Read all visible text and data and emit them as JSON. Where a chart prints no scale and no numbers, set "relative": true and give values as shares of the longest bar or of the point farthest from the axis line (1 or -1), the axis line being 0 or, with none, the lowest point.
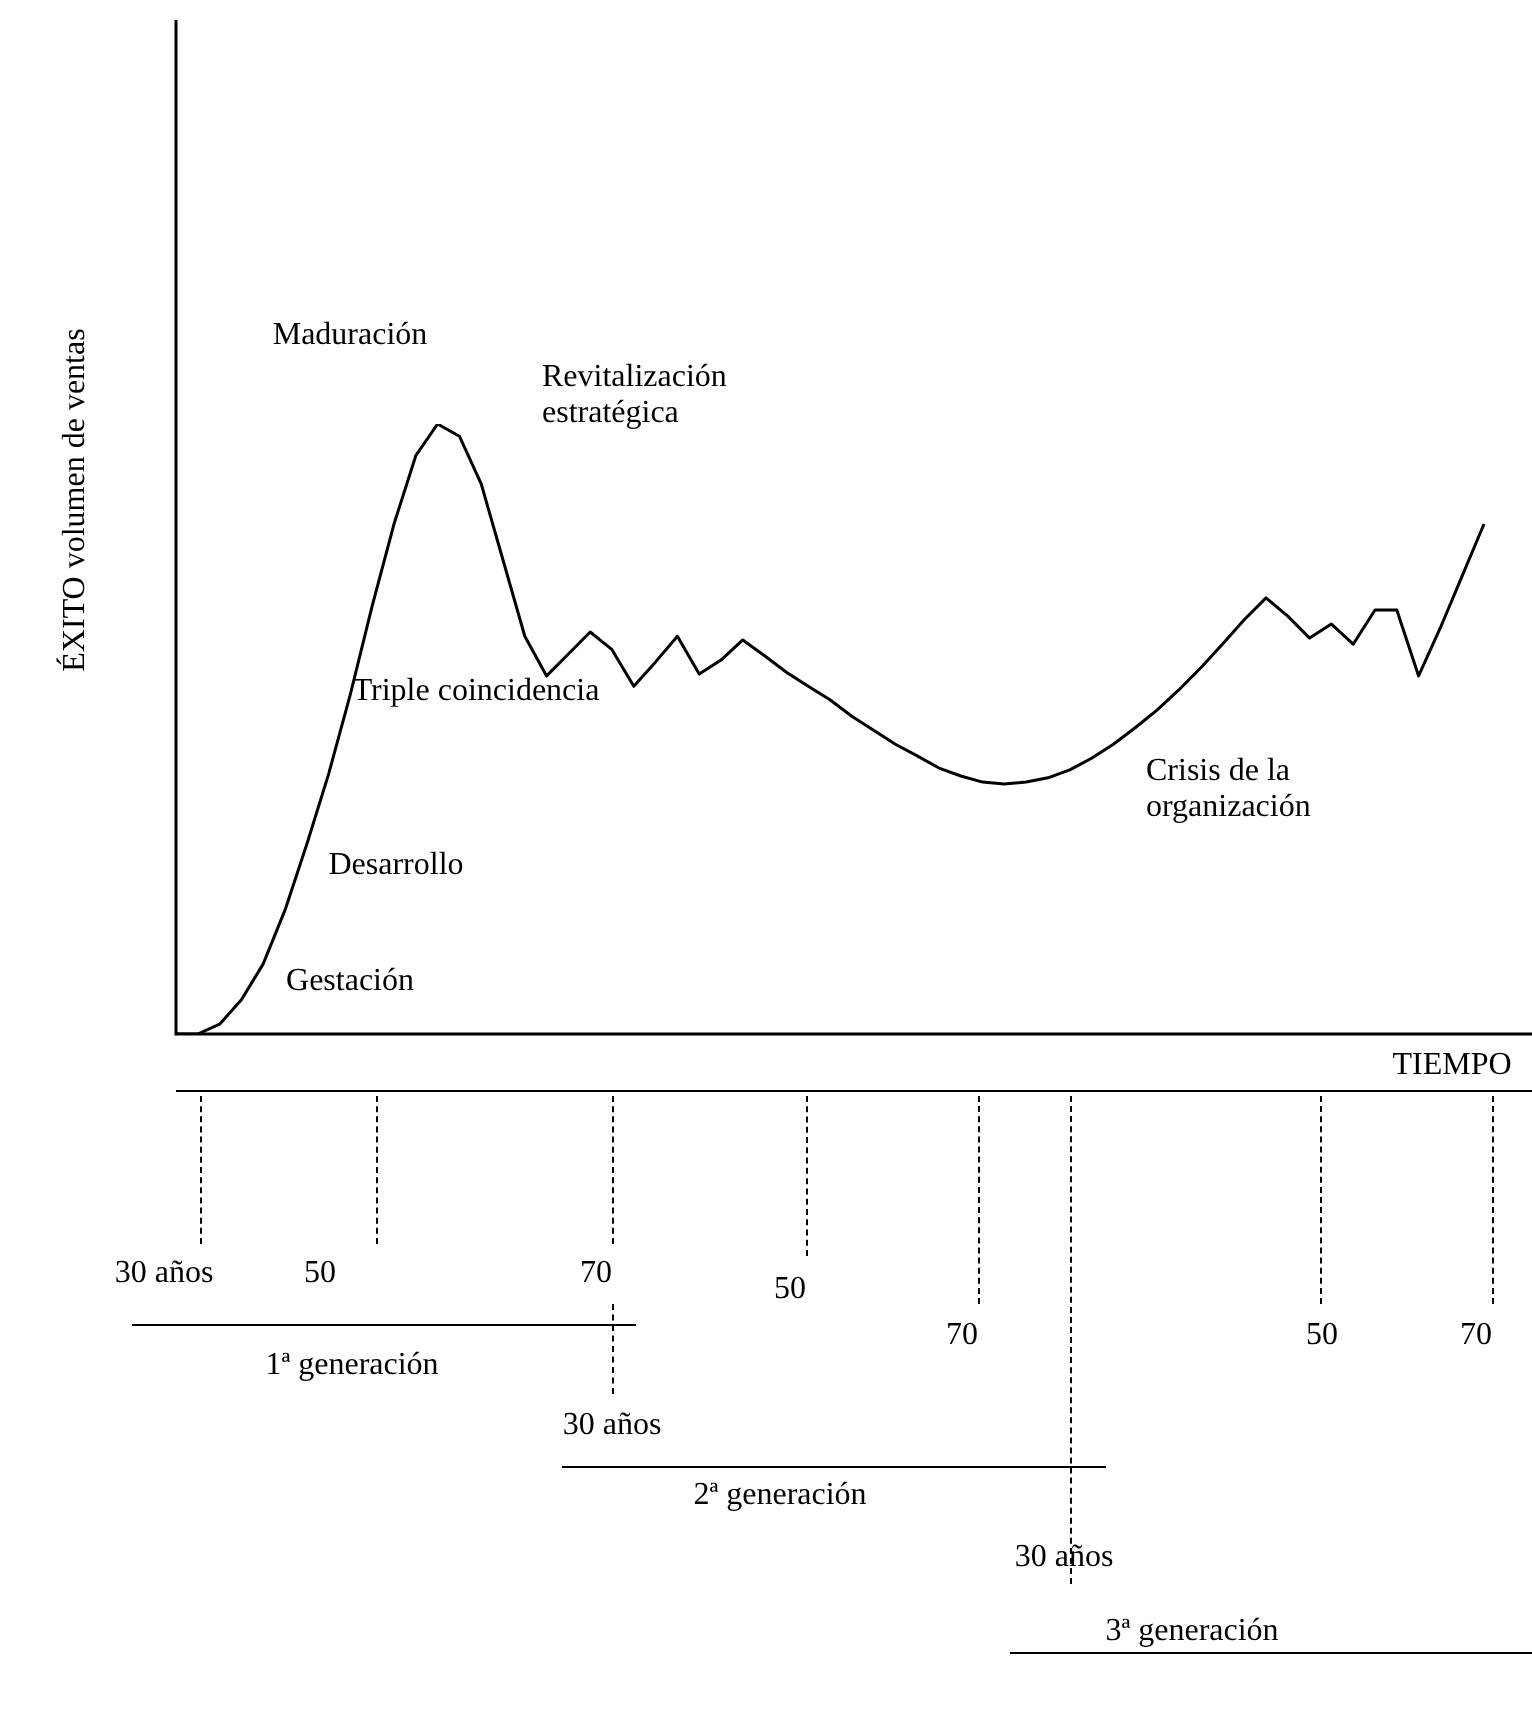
{
  "chart_data": {
    "type": "line",
    "relative": true,
    "color": "#000000",
    "marker": "none",
    "legend": false,
    "xlabel": "TIEMPO",
    "ylabel": "ÉXITO volumen de ventas",
    "categories": [
      null,
      null,
      null,
      null,
      null,
      null,
      null,
      null,
      null,
      null,
      null,
      null,
      null,
      null,
      null,
      null,
      null,
      null,
      null,
      null,
      null,
      null,
      null,
      null,
      null,
      null,
      null,
      null,
      null,
      null,
      null,
      null,
      null,
      null,
      null,
      null,
      null,
      null,
      null,
      null,
      null,
      null,
      null,
      null,
      null,
      null,
      null,
      null,
      null,
      null,
      null,
      null,
      null,
      null,
      null,
      null,
      null,
      null,
      null,
      null,
      null
    ],
    "values": [
      0,
      0,
      0.016,
      0.056,
      0.115,
      0.203,
      0.311,
      0.426,
      0.557,
      0.702,
      0.836,
      0.948,
      1,
      0.98,
      0.902,
      0.777,
      0.652,
      0.587,
      0.623,
      0.659,
      0.63,
      0.57,
      0.61,
      0.652,
      0.59,
      0.613,
      0.646,
      0.62,
      0.593,
      0.57,
      0.548,
      0.521,
      0.498,
      0.475,
      0.456,
      0.436,
      0.423,
      0.413,
      0.41,
      0.413,
      0.42,
      0.433,
      0.452,
      0.475,
      0.502,
      0.531,
      0.564,
      0.6,
      0.639,
      0.679,
      0.715,
      0.685,
      0.649,
      0.672,
      0.639,
      0.695,
      0.695,
      0.587,
      0.666,
      0.751,
      0.836
    ],
    "annotations": [
      "Maduración",
      "Revitalización estratégica",
      "Triple coincidencia",
      "Desarrollo",
      "Gestación",
      "Crisis de la organización",
      "30 años",
      "50",
      "70",
      "1ª generación",
      "50",
      "70",
      "30 años",
      "2ª generación",
      "50",
      "70",
      "30 años",
      "3ª generación"
    ]
  }
}
